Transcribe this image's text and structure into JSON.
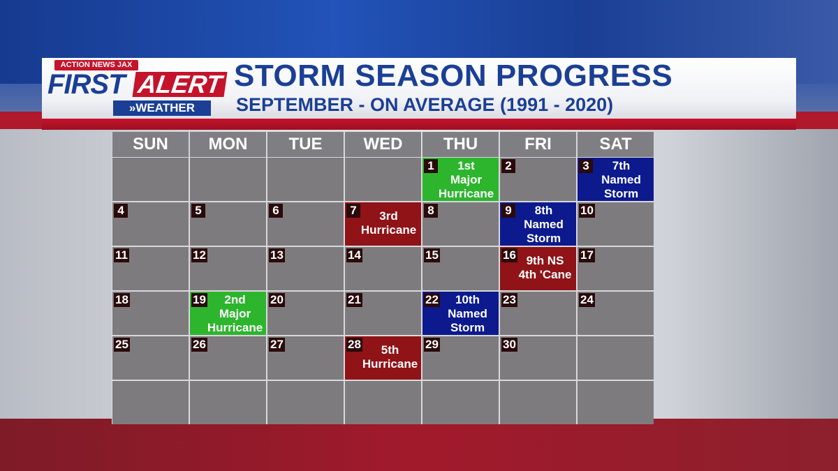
{
  "logo": {
    "top": "ACTION NEWS JAX",
    "first": "FIRST",
    "alert": "ALERT",
    "weather": "»WEATHER"
  },
  "title": "STORM SEASON PROGRESS",
  "subtitle": "SEPTEMBER - ON AVERAGE (1991 - 2020)",
  "colors": {
    "green": "#2db52d",
    "blue": "#0c1a8e",
    "red": "#8f1317",
    "cell": "#7d7b7e",
    "brand_blue": "#1b3f95",
    "brand_red": "#c4132b"
  },
  "days": [
    "SUN",
    "MON",
    "TUE",
    "WED",
    "THU",
    "FRI",
    "SAT"
  ],
  "cells": [
    {
      "n": "",
      "e": []
    },
    {
      "n": "",
      "e": []
    },
    {
      "n": "",
      "e": []
    },
    {
      "n": "",
      "e": []
    },
    {
      "n": "1",
      "c": "green",
      "e": [
        "1st",
        "Major",
        "Hurricane"
      ]
    },
    {
      "n": "2",
      "e": []
    },
    {
      "n": "3",
      "c": "blue",
      "e": [
        "7th",
        "Named",
        "Storm"
      ]
    },
    {
      "n": "4",
      "e": []
    },
    {
      "n": "5",
      "e": []
    },
    {
      "n": "6",
      "e": []
    },
    {
      "n": "7",
      "c": "red",
      "e": [
        "3rd",
        "Hurricane"
      ]
    },
    {
      "n": "8",
      "e": []
    },
    {
      "n": "9",
      "c": "blue",
      "e": [
        "8th",
        "Named",
        "Storm"
      ]
    },
    {
      "n": "10",
      "e": []
    },
    {
      "n": "11",
      "e": []
    },
    {
      "n": "12",
      "e": []
    },
    {
      "n": "13",
      "e": []
    },
    {
      "n": "14",
      "e": []
    },
    {
      "n": "15",
      "e": []
    },
    {
      "n": "16",
      "c": "red",
      "e": [
        "9th NS",
        "4th 'Cane"
      ]
    },
    {
      "n": "17",
      "e": []
    },
    {
      "n": "18",
      "e": []
    },
    {
      "n": "19",
      "c": "green",
      "e": [
        "2nd",
        "Major",
        "Hurricane"
      ]
    },
    {
      "n": "20",
      "e": []
    },
    {
      "n": "21",
      "e": []
    },
    {
      "n": "22",
      "c": "blue",
      "e": [
        "10th",
        "Named",
        "Storm"
      ]
    },
    {
      "n": "23",
      "e": []
    },
    {
      "n": "24",
      "e": []
    },
    {
      "n": "25",
      "e": []
    },
    {
      "n": "26",
      "e": []
    },
    {
      "n": "27",
      "e": []
    },
    {
      "n": "28",
      "c": "red",
      "e": [
        "5th",
        "Hurricane"
      ]
    },
    {
      "n": "29",
      "e": []
    },
    {
      "n": "30",
      "e": []
    },
    {
      "n": "",
      "e": []
    },
    {
      "n": "",
      "e": []
    },
    {
      "n": "",
      "e": []
    },
    {
      "n": "",
      "e": []
    },
    {
      "n": "",
      "e": []
    },
    {
      "n": "",
      "e": []
    },
    {
      "n": "",
      "e": []
    },
    {
      "n": "",
      "e": []
    }
  ]
}
